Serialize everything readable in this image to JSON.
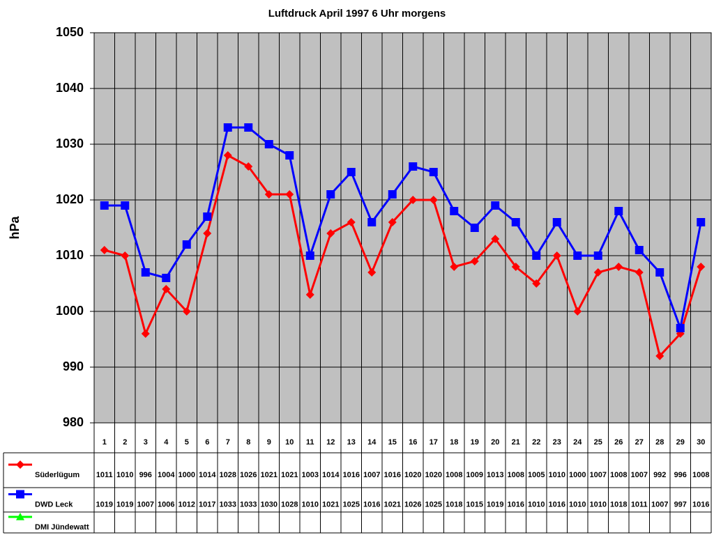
{
  "chart_data": {
    "type": "line",
    "title": "Luftdruck April 1997 6 Uhr morgens",
    "y_label": "hPa",
    "categories": [
      "1",
      "2",
      "3",
      "4",
      "5",
      "6",
      "7",
      "8",
      "9",
      "10",
      "11",
      "12",
      "13",
      "14",
      "15",
      "16",
      "17",
      "18",
      "19",
      "20",
      "21",
      "22",
      "23",
      "24",
      "25",
      "26",
      "27",
      "28",
      "29",
      "30"
    ],
    "series": [
      {
        "name": "Süderlügum",
        "color": "#ff0000",
        "marker": "diamond",
        "values": [
          1011,
          1010,
          996,
          1004,
          1000,
          1014,
          1028,
          1026,
          1021,
          1021,
          1003,
          1014,
          1016,
          1007,
          1016,
          1020,
          1020,
          1008,
          1009,
          1013,
          1008,
          1005,
          1010,
          1000,
          1007,
          1008,
          1007,
          992,
          996,
          1008
        ]
      },
      {
        "name": "DWD Leck",
        "color": "#0000ff",
        "marker": "square",
        "values": [
          1019,
          1019,
          1007,
          1006,
          1012,
          1017,
          1033,
          1033,
          1030,
          1028,
          1010,
          1021,
          1025,
          1016,
          1021,
          1026,
          1025,
          1018,
          1015,
          1019,
          1016,
          1010,
          1016,
          1010,
          1010,
          1018,
          1011,
          1007,
          997,
          1016
        ]
      },
      {
        "name": "DMI Jündewatt",
        "color": "#00ff00",
        "marker": "triangle",
        "values": [
          null,
          null,
          null,
          null,
          null,
          null,
          null,
          null,
          null,
          null,
          null,
          null,
          null,
          null,
          null,
          null,
          null,
          null,
          null,
          null,
          null,
          null,
          null,
          null,
          null,
          null,
          null,
          null,
          null,
          null
        ]
      }
    ],
    "ylim": [
      980,
      1050
    ],
    "yticks": [
      980,
      990,
      1000,
      1010,
      1020,
      1030,
      1040,
      1050
    ],
    "grid": true,
    "plot_background": "#c0c0c0"
  }
}
